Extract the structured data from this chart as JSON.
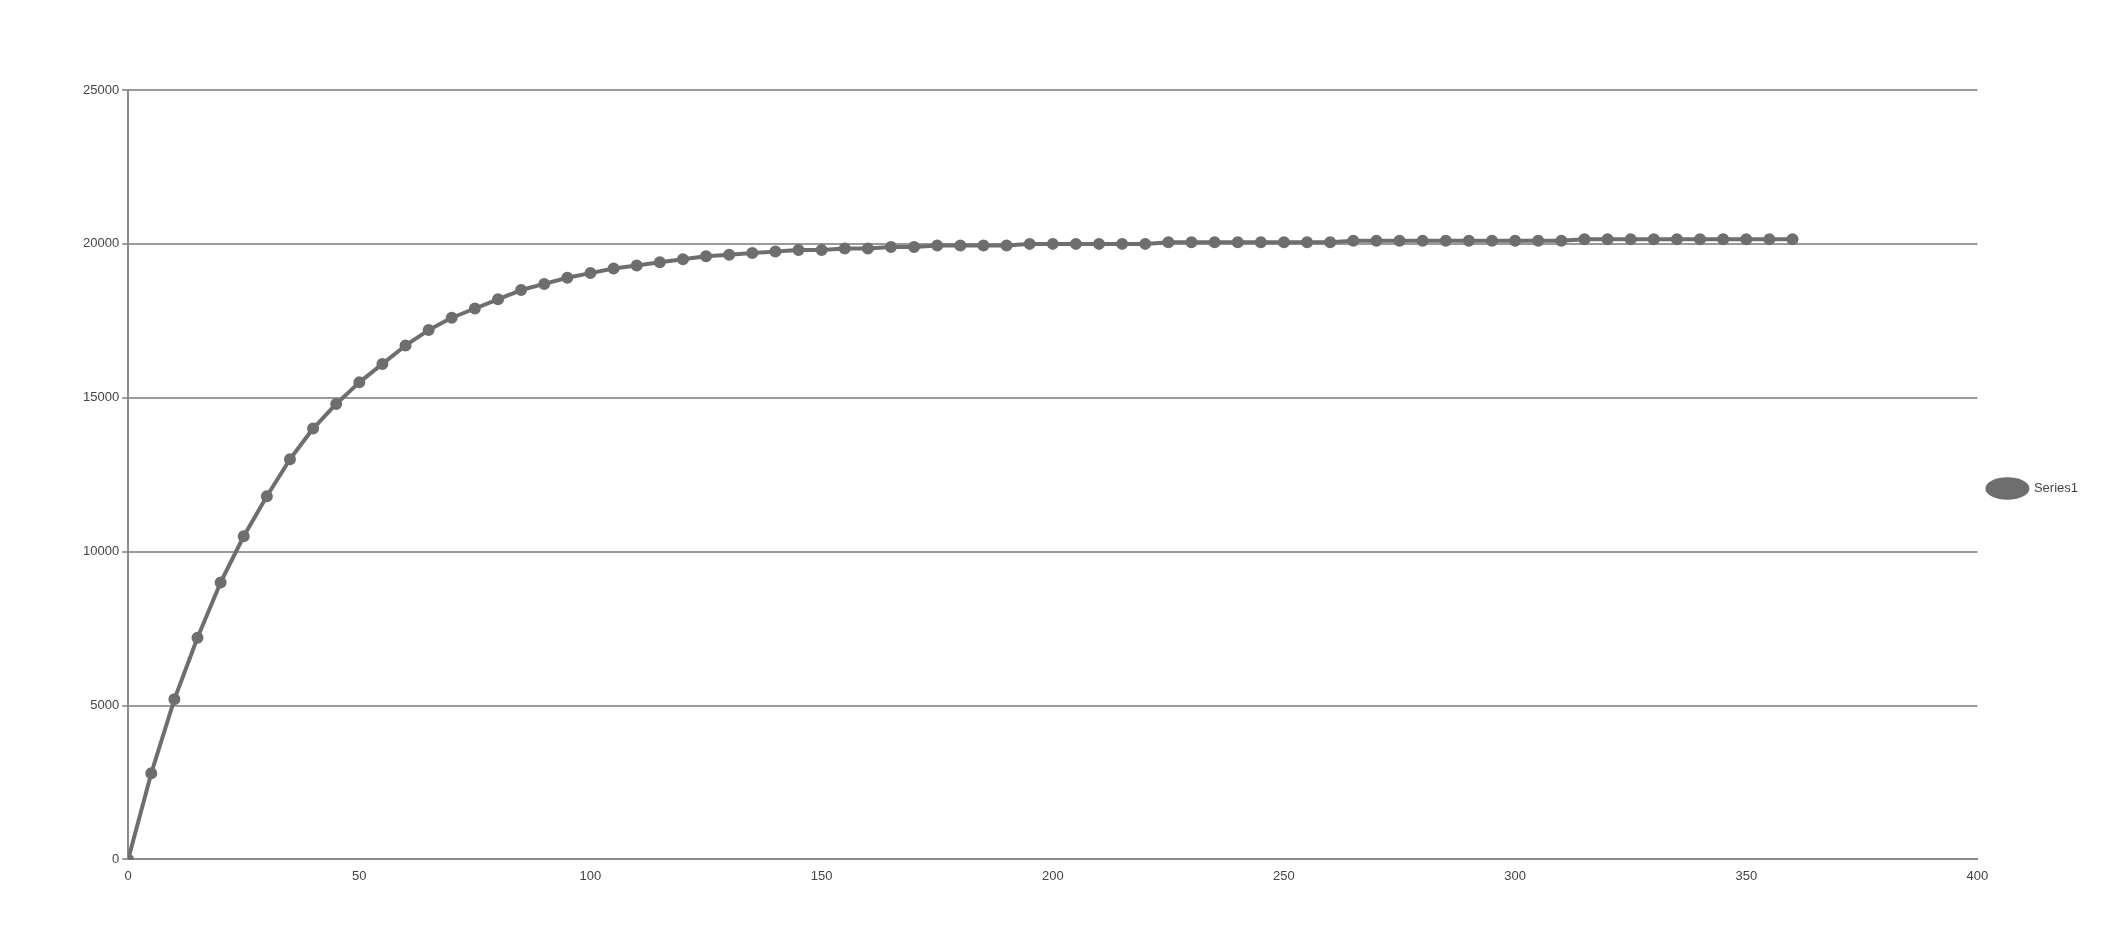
{
  "chart_data": {
    "type": "line",
    "x": [
      0,
      5,
      10,
      15,
      20,
      25,
      30,
      35,
      40,
      45,
      50,
      55,
      60,
      65,
      70,
      75,
      80,
      85,
      90,
      95,
      100,
      105,
      110,
      115,
      120,
      125,
      130,
      135,
      140,
      145,
      150,
      155,
      160,
      165,
      170,
      175,
      180,
      185,
      190,
      195,
      200,
      205,
      210,
      215,
      220,
      225,
      230,
      235,
      240,
      245,
      250,
      255,
      260,
      265,
      270,
      275,
      280,
      285,
      290,
      295,
      300,
      305,
      310,
      315,
      320,
      325,
      330,
      335,
      340,
      345,
      350,
      355,
      360
    ],
    "series": [
      {
        "name": "Series1",
        "color": "#6e6e6e",
        "values": [
          0,
          2800,
          5200,
          7200,
          9000,
          10500,
          11800,
          13000,
          14000,
          14800,
          15500,
          16100,
          16700,
          17200,
          17600,
          17900,
          18200,
          18500,
          18700,
          18900,
          19050,
          19200,
          19300,
          19400,
          19500,
          19600,
          19650,
          19700,
          19750,
          19800,
          19800,
          19850,
          19850,
          19900,
          19900,
          19950,
          19950,
          19950,
          19950,
          20000,
          20000,
          20000,
          20000,
          20000,
          20000,
          20050,
          20050,
          20050,
          20050,
          20050,
          20050,
          20050,
          20050,
          20100,
          20100,
          20100,
          20100,
          20100,
          20100,
          20100,
          20100,
          20100,
          20100,
          20150,
          20150,
          20150,
          20150,
          20150,
          20150,
          20150,
          20150,
          20150,
          20150
        ]
      }
    ],
    "xlim": [
      0,
      400
    ],
    "xticks": [
      0,
      50,
      100,
      150,
      200,
      250,
      300,
      350,
      400
    ],
    "ylim": [
      0,
      25000
    ],
    "yticks": [
      0,
      5000,
      10000,
      15000,
      20000,
      25000
    ],
    "grid": "y",
    "legend": "right",
    "marker": "circle",
    "line_style": "solid"
  }
}
